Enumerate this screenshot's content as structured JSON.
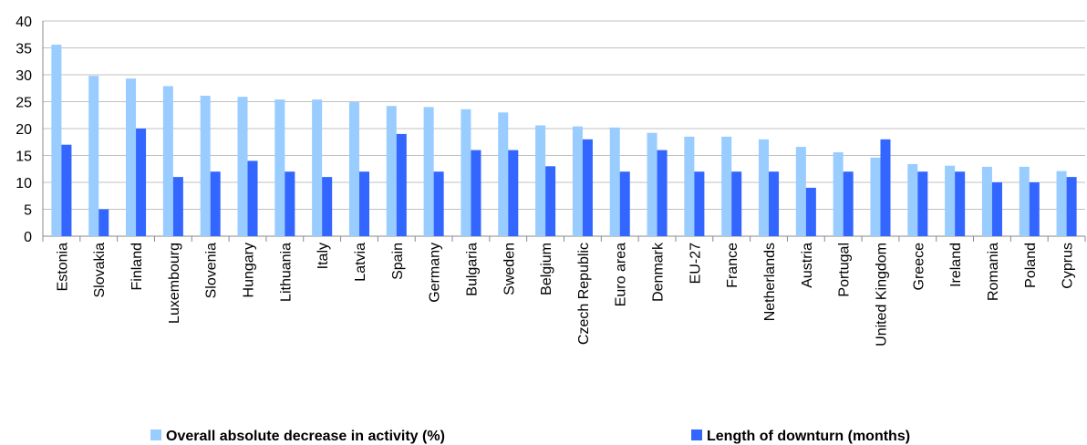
{
  "chart_data": {
    "type": "bar",
    "categories": [
      "Estonia",
      "Slovakia",
      "Finland",
      "Luxembourg",
      "Slovenia",
      "Hungary",
      "Lithuania",
      "Italy",
      "Latvia",
      "Spain",
      "Germany",
      "Bulgaria",
      "Sweden",
      "Belgium",
      "Czech Republic",
      "Euro area",
      "Denmark",
      "EU-27",
      "France",
      "Netherlands",
      "Austria",
      "Portugal",
      "United Kingdom",
      "Greece",
      "Ireland",
      "Romania",
      "Poland",
      "Cyprus"
    ],
    "series": [
      {
        "name": "Overall absolute decrease in activity (%)",
        "color": "#99ccff",
        "values": [
          35.6,
          29.8,
          29.3,
          27.9,
          26.1,
          25.9,
          25.4,
          25.4,
          24.9,
          24.2,
          24.0,
          23.6,
          23.0,
          20.6,
          20.4,
          20.2,
          19.2,
          18.5,
          18.5,
          18.0,
          16.6,
          15.6,
          14.6,
          13.4,
          13.1,
          12.9,
          12.9,
          12.1
        ]
      },
      {
        "name": "Length of downturn (months)",
        "color": "#3366ff",
        "values": [
          17,
          5,
          20,
          11,
          12,
          14,
          12,
          11,
          12,
          19,
          12,
          16,
          16,
          13,
          18,
          12,
          16,
          12,
          12,
          12,
          9,
          12,
          18,
          12,
          12,
          10,
          10,
          11
        ]
      }
    ],
    "ylim": [
      0,
      40
    ],
    "yticks": [
      0,
      5,
      10,
      15,
      20,
      25,
      30,
      35,
      40
    ],
    "grid": true,
    "legend": "bottom"
  }
}
